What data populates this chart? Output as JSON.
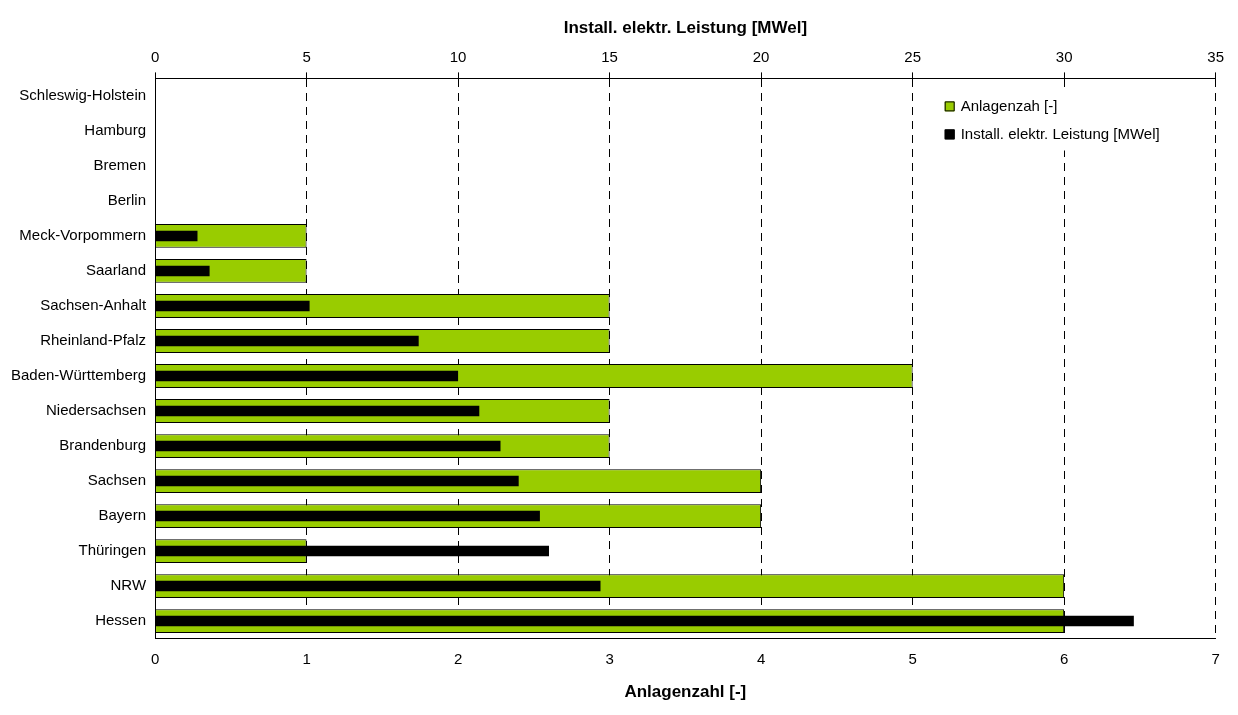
{
  "chart_data": {
    "type": "bar",
    "orientation": "horizontal",
    "xlabel": "Anlagenzahl [-]",
    "x2label": "Install. elektr. Leistung [MWel]",
    "categories": [
      "Schleswig-Holstein",
      "Hamburg",
      "Bremen",
      "Berlin",
      "Meck-Vorpommern",
      "Saarland",
      "Sachsen-Anhalt",
      "Rheinland-Pfalz",
      "Baden-Württemberg",
      "Niedersachsen",
      "Brandenburg",
      "Sachsen",
      "Bayern",
      "Thüringen",
      "NRW",
      "Hessen"
    ],
    "series": [
      {
        "name": "Anlagenzah [-]",
        "color": "#99cc00",
        "values": [
          0,
          0,
          0,
          0,
          1,
          1,
          3,
          3,
          5,
          3,
          3,
          4,
          4,
          1,
          6,
          6
        ]
      },
      {
        "name": "Install. elektr. Leistung [MWel]",
        "color": "#000000",
        "axis": "x2",
        "values": [
          0,
          0,
          0,
          0,
          1.4,
          1.8,
          5.1,
          8.7,
          10.0,
          10.7,
          11.4,
          12.0,
          12.7,
          13.0,
          14.7,
          32.3
        ]
      }
    ],
    "xlim": [
      0,
      7
    ],
    "xticks": [
      0,
      1,
      2,
      3,
      4,
      5,
      6,
      7
    ],
    "x2lim": [
      0,
      35
    ],
    "x2ticks": [
      0,
      5,
      10,
      15,
      20,
      25,
      30,
      35
    ],
    "grid": "x",
    "legend": "top right"
  }
}
